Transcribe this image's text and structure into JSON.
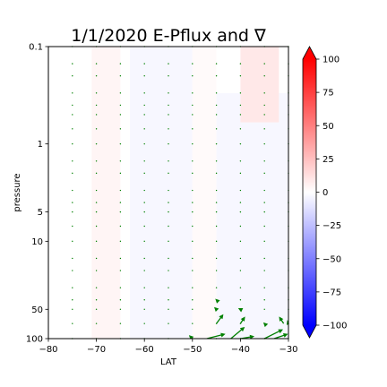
{
  "chart_data": {
    "type": "quiver",
    "title": "1/1/2020 E-Pflux and ∇",
    "xlabel": "LAT",
    "ylabel": "pressure",
    "xlim": [
      -80,
      -30
    ],
    "ylim": [
      100,
      0.1
    ],
    "y_scale": "log",
    "x_ticks": [
      -80,
      -70,
      -60,
      -50,
      -40,
      -30
    ],
    "y_ticks": [
      0.1,
      1,
      5,
      10,
      50,
      100
    ],
    "y_tick_labels": [
      "0.1",
      "1",
      "5",
      "10",
      "50",
      "100"
    ],
    "colorbar": {
      "cmap": "bwr",
      "range": [
        -100,
        100
      ],
      "ticks": [
        100,
        75,
        50,
        25,
        0,
        -25,
        -50,
        -75,
        -100
      ],
      "extend": "both"
    },
    "contour_fill": [
      {
        "lat_range": [
          -71,
          -65
        ],
        "p_range": [
          0.1,
          100
        ],
        "value": 4
      },
      {
        "lat_range": [
          -63,
          -50
        ],
        "p_range": [
          0.1,
          100
        ],
        "value": -3
      },
      {
        "lat_range": [
          -50,
          -45
        ],
        "p_range": [
          0.1,
          100
        ],
        "value": 2
      },
      {
        "lat_range": [
          -45,
          -30
        ],
        "p_range": [
          0.3,
          100
        ],
        "value": -3
      },
      {
        "lat_range": [
          -40,
          -32
        ],
        "p_range": [
          0.1,
          0.6
        ],
        "value": 9
      }
    ],
    "grid_lats": [
      -75,
      -70,
      -65,
      -60,
      -55,
      -50,
      -45,
      -40,
      -35,
      -30
    ],
    "grid_levels": [
      0.1,
      0.15,
      0.2,
      0.3,
      0.4,
      0.5,
      0.7,
      1,
      1.5,
      2,
      3,
      4,
      5,
      7,
      10,
      15,
      20,
      30,
      40,
      50,
      70,
      100
    ],
    "arrow_color": "#008000",
    "arrows": [
      {
        "lat": -50,
        "p": 100,
        "u": -1.5,
        "v": 1.5
      },
      {
        "lat": -47,
        "p": 100,
        "u": 8,
        "v": 2
      },
      {
        "lat": -45,
        "p": 70,
        "u": 3,
        "v": 4
      },
      {
        "lat": -42,
        "p": 100,
        "u": 6,
        "v": 5
      },
      {
        "lat": -40,
        "p": 100,
        "u": 6,
        "v": 1
      },
      {
        "lat": -40,
        "p": 70,
        "u": 2,
        "v": 3
      },
      {
        "lat": -35,
        "p": 100,
        "u": 8,
        "v": 4
      },
      {
        "lat": -33,
        "p": 100,
        "u": 6,
        "v": 2
      },
      {
        "lat": -31,
        "p": 70,
        "u": -2,
        "v": 3
      },
      {
        "lat": -45,
        "p": 50,
        "u": -1,
        "v": 1
      },
      {
        "lat": -45,
        "p": 40,
        "u": -0.5,
        "v": 0.5
      },
      {
        "lat": -40,
        "p": 50,
        "u": -1,
        "v": 0.5
      },
      {
        "lat": -35,
        "p": 70,
        "u": -0.5,
        "v": 0.5
      },
      {
        "lat": -30,
        "p": 70,
        "u": -0.5,
        "v": 1.5
      }
    ]
  }
}
